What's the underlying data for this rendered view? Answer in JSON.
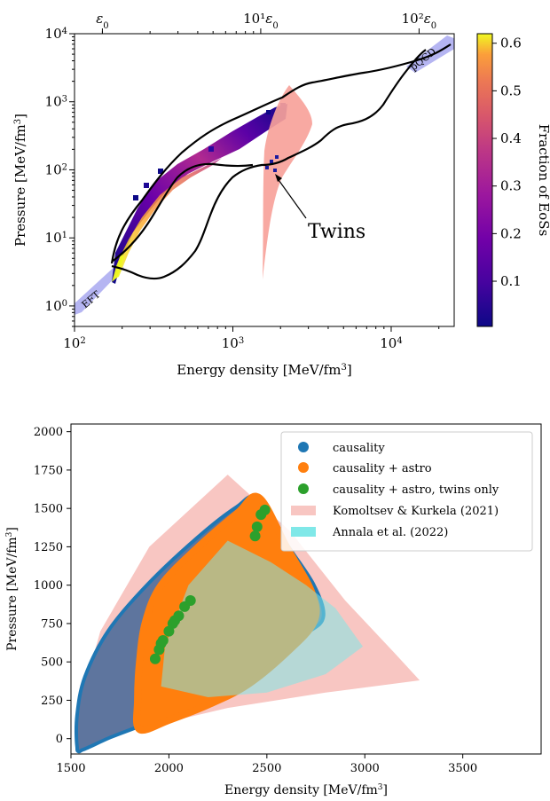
{
  "chart_data": [
    {
      "type": "heatmap",
      "xlabel": "Energy density [MeV/fm",
      "xlabel_sup": "3",
      "xlabel_end": "]",
      "ylabel": "Pressure [MeV/fm",
      "ylabel_sup": "3",
      "ylabel_end": "]",
      "xscale": "log",
      "yscale": "log",
      "xlim": [
        100,
        25000
      ],
      "ylim": [
        0.5,
        10000
      ],
      "x_ticks": [
        {
          "value": 100,
          "base": "10",
          "exp": "2"
        },
        {
          "value": 1000,
          "base": "10",
          "exp": "3"
        },
        {
          "value": 10000,
          "base": "10",
          "exp": "4"
        }
      ],
      "y_ticks": [
        {
          "value": 1,
          "base": "10",
          "exp": "0"
        },
        {
          "value": 10,
          "base": "10",
          "exp": "1"
        },
        {
          "value": 100,
          "base": "10",
          "exp": "2"
        },
        {
          "value": 1000,
          "base": "10",
          "exp": "3"
        },
        {
          "value": 10000,
          "base": "10",
          "exp": "4"
        }
      ],
      "top_ticks": [
        {
          "value": 150,
          "label": "ε",
          "sub": "0",
          "pre": ""
        },
        {
          "value": 1500,
          "label": "ε",
          "sub": "0",
          "pre": "10¹"
        },
        {
          "value": 15000,
          "label": "ε",
          "sub": "0",
          "pre": "10²"
        }
      ],
      "colorbar": {
        "label": "Fraction of EoSs",
        "range": [
          0.005,
          0.62
        ],
        "ticks": [
          "0.1",
          "0.2",
          "0.3",
          "0.4",
          "0.5",
          "0.6"
        ],
        "tick_values": [
          0.1,
          0.2,
          0.3,
          0.4,
          0.5,
          0.6
        ]
      },
      "annotations": {
        "twins": "Twins",
        "eft": "EFT",
        "pqcd": "pQCD"
      },
      "envelope_upper": [
        [
          170,
          3
        ],
        [
          200,
          8
        ],
        [
          300,
          30
        ],
        [
          450,
          110
        ],
        [
          700,
          300
        ],
        [
          1000,
          600
        ],
        [
          1500,
          900
        ],
        [
          2000,
          1000
        ],
        [
          3000,
          1200
        ],
        [
          5000,
          2000
        ],
        [
          8000,
          3000
        ],
        [
          15000,
          4500
        ]
      ],
      "envelope_lower": [
        [
          170,
          2.2
        ],
        [
          250,
          3
        ],
        [
          350,
          5
        ],
        [
          450,
          8
        ],
        [
          600,
          20
        ],
        [
          800,
          60
        ],
        [
          1000,
          100
        ],
        [
          1300,
          110
        ],
        [
          1800,
          130
        ],
        [
          3000,
          200
        ],
        [
          5000,
          350
        ],
        [
          8000,
          800
        ],
        [
          12000,
          2000
        ],
        [
          15000,
          3500
        ]
      ],
      "envelope_inner": [
        [
          170,
          3
        ],
        [
          200,
          7
        ],
        [
          300,
          28
        ],
        [
          500,
          70
        ],
        [
          700,
          100
        ],
        [
          1000,
          120
        ]
      ],
      "twins_region": [
        [
          1580,
          2.5
        ],
        [
          1600,
          30
        ],
        [
          1650,
          150
        ],
        [
          1700,
          300
        ],
        [
          1900,
          500
        ],
        [
          2200,
          700
        ],
        [
          2600,
          400
        ],
        [
          3000,
          150
        ],
        [
          2600,
          80
        ],
        [
          2200,
          30
        ],
        [
          1900,
          12
        ],
        [
          1700,
          6
        ],
        [
          1600,
          2.5
        ]
      ],
      "twins_points": [
        [
          1800,
          100
        ],
        [
          1880,
          90
        ],
        [
          1950,
          120
        ],
        [
          1700,
          95
        ]
      ]
    },
    {
      "type": "scatter",
      "xlabel": "Energy density [MeV/fm",
      "xlabel_sup": "3",
      "xlabel_end": "]",
      "ylabel": "Pressure [MeV/fm",
      "ylabel_sup": "3",
      "ylabel_end": "]",
      "xlim": [
        1500,
        3900
      ],
      "ylim": [
        -100,
        2050
      ],
      "x_ticks": [
        1500,
        2000,
        2500,
        3000,
        3500
      ],
      "y_ticks": [
        0,
        250,
        500,
        750,
        1000,
        1250,
        1500,
        1750,
        2000
      ],
      "legend_position": "top-right",
      "series": [
        {
          "name": "causality",
          "color": "#1f77b4",
          "polygon": [
            [
              1560,
              -60
            ],
            [
              1700,
              20
            ],
            [
              1900,
              120
            ],
            [
              2100,
              250
            ],
            [
              2300,
              400
            ],
            [
              2500,
              560
            ],
            [
              2700,
              700
            ],
            [
              2780,
              800
            ],
            [
              2730,
              1000
            ],
            [
              2600,
              1250
            ],
            [
              2450,
              1550
            ],
            [
              2350,
              1500
            ],
            [
              2150,
              1300
            ],
            [
              1900,
              1000
            ],
            [
              1700,
              700
            ],
            [
              1580,
              400
            ],
            [
              1540,
              150
            ],
            [
              1540,
              -50
            ]
          ]
        },
        {
          "name": "causality + astro",
          "color": "#ff7f0e",
          "polygon": [
            [
              1850,
              60
            ],
            [
              2000,
              120
            ],
            [
              2200,
              220
            ],
            [
              2400,
              350
            ],
            [
              2600,
              560
            ],
            [
              2740,
              760
            ],
            [
              2730,
              950
            ],
            [
              2600,
              1250
            ],
            [
              2460,
              1570
            ],
            [
              2350,
              1470
            ],
            [
              2150,
              1250
            ],
            [
              1960,
              1000
            ],
            [
              1880,
              760
            ],
            [
              1850,
              500
            ],
            [
              1840,
              250
            ]
          ]
        },
        {
          "name": "causality + astro, twins only",
          "color": "#2ca02c",
          "points": [
            [
              1930,
              520
            ],
            [
              1950,
              580
            ],
            [
              1970,
              640
            ],
            [
              2000,
              700
            ],
            [
              2020,
              750
            ],
            [
              2050,
              800
            ],
            [
              2080,
              860
            ],
            [
              2110,
              900
            ],
            [
              2440,
              1320
            ],
            [
              2450,
              1380
            ],
            [
              2470,
              1460
            ],
            [
              2490,
              1490
            ],
            [
              1960,
              620
            ],
            [
              2030,
              770
            ]
          ]
        },
        {
          "name": "Komoltsev & Kurkela (2021)",
          "color": "#f8c6c2",
          "polygon": [
            [
              1560,
              0
            ],
            [
              1900,
              80
            ],
            [
              2300,
              200
            ],
            [
              2800,
              300
            ],
            [
              3280,
              380
            ],
            [
              3150,
              560
            ],
            [
              2900,
              900
            ],
            [
              2620,
              1350
            ],
            [
              2300,
              1720
            ],
            [
              1900,
              1250
            ],
            [
              1650,
              700
            ],
            [
              1540,
              200
            ]
          ]
        },
        {
          "name": "Annala et al. (2022)",
          "color": "#80e8e8",
          "polygon": [
            [
              1960,
              340
            ],
            [
              2200,
              270
            ],
            [
              2500,
              300
            ],
            [
              2800,
              420
            ],
            [
              2990,
              600
            ],
            [
              2850,
              850
            ],
            [
              2700,
              1000
            ],
            [
              2520,
              1150
            ],
            [
              2300,
              1290
            ],
            [
              2100,
              1000
            ],
            [
              1980,
              600
            ]
          ]
        }
      ]
    }
  ]
}
